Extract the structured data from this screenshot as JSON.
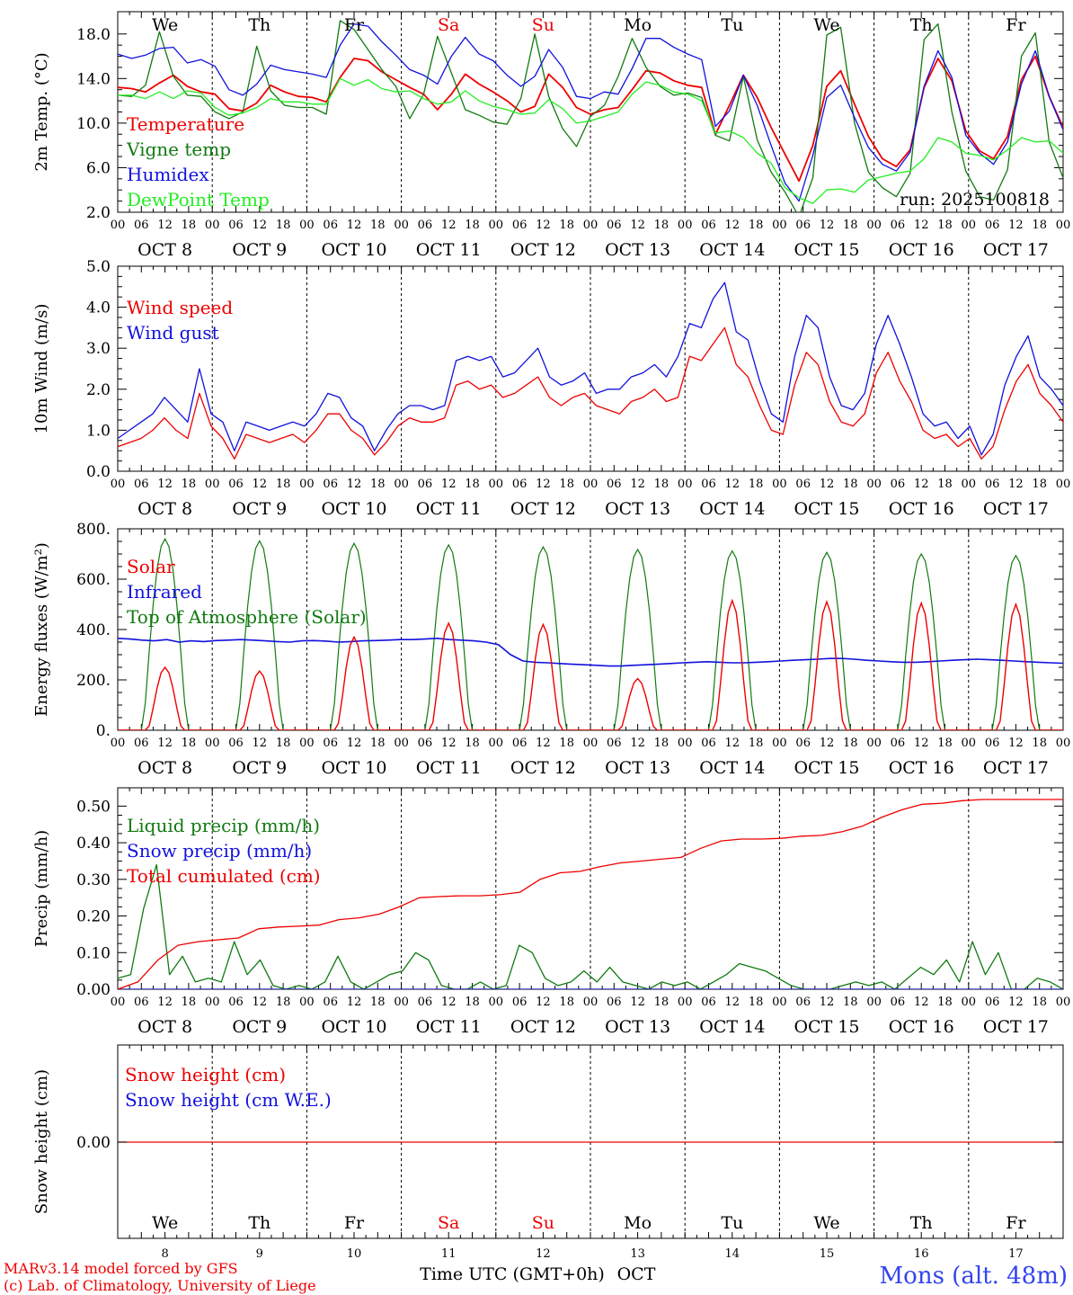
{
  "colors": {
    "red": "#ee0000",
    "green": "#117a11",
    "lightgreen": "#22ee22",
    "blue": "#1111dd",
    "axis": "#000000"
  },
  "days": [
    "We",
    "Th",
    "Fr",
    "Sa",
    "Su",
    "Mo",
    "Tu",
    "We",
    "Th",
    "Fr"
  ],
  "weekend_days": [
    "Sa",
    "Su"
  ],
  "dates": [
    "OCT  8",
    "OCT  9",
    "OCT 10",
    "OCT 11",
    "OCT 12",
    "OCT 13",
    "OCT 14",
    "OCT 15",
    "OCT 16",
    "OCT 17"
  ],
  "hour_ticks": [
    "00",
    "06",
    "12",
    "18"
  ],
  "hour_tick_last": "00",
  "bottom_day_numbers": [
    "8",
    "9",
    "10",
    "11",
    "12",
    "13",
    "14",
    "15",
    "16",
    "17"
  ],
  "footer": {
    "credit_line1": "MARv3.14 model forced by GFS",
    "credit_line2": "(c) Lab. of Climatology, University of Liege",
    "xlabel": "Time UTC (GMT+0h)",
    "month": "OCT",
    "station": "Mons (alt. 48m)"
  },
  "chart_data": [
    {
      "type": "line",
      "id": "temp",
      "ylabel": "2m Temp. (°C)",
      "ylim": [
        2.0,
        20.0
      ],
      "yticks": [
        "2.0",
        "6.0",
        "10.0",
        "14.0",
        "18.0"
      ],
      "ytick_values": [
        2,
        6,
        10,
        14,
        18
      ],
      "run_label": "run: 2025100818",
      "legend": [
        "Temperature",
        "Vigne temp",
        "Humidex",
        "DewPoint Temp"
      ],
      "series": [
        {
          "name": "Temperature",
          "color": "red",
          "values": [
            13.2,
            13.1,
            12.8,
            13.6,
            14.3,
            13.3,
            12.8,
            12.6,
            11.3,
            11.1,
            11.8,
            13.4,
            12.8,
            12.4,
            12.3,
            11.9,
            14.1,
            15.8,
            15.6,
            14.6,
            13.9,
            13.2,
            12.6,
            11.2,
            12.6,
            14.4,
            13.5,
            12.8,
            12.0,
            11.0,
            11.5,
            14.4,
            13.2,
            11.4,
            10.8,
            11.2,
            11.4,
            13.0,
            14.7,
            14.5,
            13.8,
            13.4,
            13.2,
            9.0,
            11.6,
            14.3,
            12.3,
            9.6,
            7.2,
            4.8,
            8.0,
            13.3,
            14.7,
            11.7,
            8.8,
            6.8,
            6.1,
            7.6,
            13.2,
            15.8,
            13.8,
            9.3,
            7.5,
            6.8,
            8.8,
            13.9,
            16.0,
            12.4,
            9.6
          ]
        },
        {
          "name": "Vigne temp",
          "color": "green",
          "values": [
            12.5,
            12.4,
            13.4,
            18.2,
            14.2,
            12.5,
            12.4,
            11.0,
            10.4,
            11.0,
            16.9,
            12.9,
            11.6,
            11.4,
            11.4,
            10.8,
            19.2,
            18.4,
            16.6,
            14.8,
            13.3,
            10.4,
            12.6,
            17.8,
            14.5,
            11.2,
            10.7,
            10.1,
            9.9,
            12.2,
            18.0,
            12.4,
            9.5,
            7.9,
            10.6,
            11.6,
            14.2,
            17.6,
            15.0,
            13.3,
            12.5,
            12.7,
            12.3,
            8.9,
            8.4,
            14.2,
            8.5,
            5.6,
            3.8,
            1.6,
            5.1,
            17.9,
            18.6,
            10.0,
            5.6,
            4.2,
            3.4,
            5.5,
            17.5,
            18.9,
            11.0,
            5.7,
            3.4,
            3.1,
            5.8,
            16.0,
            18.1,
            8.3,
            5.1
          ]
        },
        {
          "name": "Humidex",
          "color": "blue",
          "values": [
            16.2,
            15.8,
            16.1,
            16.7,
            16.8,
            15.4,
            15.7,
            15.1,
            13.0,
            12.5,
            13.5,
            15.2,
            14.8,
            14.6,
            14.4,
            14.1,
            17.0,
            18.9,
            18.7,
            17.3,
            16.1,
            14.8,
            14.3,
            13.5,
            16.0,
            17.7,
            16.2,
            15.6,
            14.3,
            13.3,
            14.2,
            16.6,
            15.0,
            12.4,
            12.2,
            12.8,
            12.6,
            14.9,
            17.6,
            17.6,
            16.8,
            16.2,
            15.7,
            9.7,
            11.1,
            14.3,
            11.6,
            8.0,
            4.6,
            3.0,
            7.1,
            12.3,
            13.4,
            10.5,
            7.8,
            6.3,
            5.7,
            7.4,
            13.3,
            16.5,
            14.1,
            8.9,
            7.3,
            6.3,
            8.3,
            13.5,
            16.5,
            12.4,
            9.4
          ]
        },
        {
          "name": "DewPoint Temp",
          "color": "lightgreen",
          "values": [
            12.5,
            12.5,
            12.2,
            12.8,
            12.2,
            12.9,
            12.7,
            11.4,
            10.7,
            10.9,
            11.4,
            12.2,
            11.9,
            11.9,
            11.7,
            11.7,
            14.0,
            13.4,
            13.9,
            13.1,
            12.8,
            12.9,
            12.2,
            11.7,
            11.9,
            12.9,
            12.0,
            11.5,
            11.2,
            10.8,
            10.9,
            12.1,
            11.3,
            10.0,
            10.2,
            10.6,
            11.0,
            12.6,
            13.7,
            13.4,
            12.8,
            12.6,
            12.0,
            9.1,
            9.3,
            8.7,
            7.3,
            6.4,
            4.2,
            3.3,
            2.8,
            4.0,
            4.1,
            3.8,
            4.9,
            5.2,
            5.5,
            5.7,
            6.8,
            8.7,
            8.3,
            7.3,
            7.1,
            6.7,
            7.6,
            8.7,
            8.3,
            8.4,
            7.3
          ]
        }
      ]
    },
    {
      "type": "line",
      "id": "wind",
      "ylabel": "10m Wind (m/s)",
      "ylim": [
        0.0,
        5.0
      ],
      "yticks": [
        "0.0",
        "1.0",
        "2.0",
        "3.0",
        "4.0",
        "5.0"
      ],
      "ytick_values": [
        0,
        1,
        2,
        3,
        4,
        5
      ],
      "legend": [
        "Wind speed",
        "Wind gust"
      ],
      "series": [
        {
          "name": "Wind speed",
          "color": "red",
          "values": [
            0.6,
            0.7,
            0.8,
            1.0,
            1.3,
            1.0,
            0.8,
            1.9,
            1.1,
            0.8,
            0.3,
            0.9,
            0.8,
            0.7,
            0.8,
            0.9,
            0.7,
            1.0,
            1.4,
            1.4,
            1.0,
            0.8,
            0.4,
            0.7,
            1.1,
            1.3,
            1.2,
            1.2,
            1.3,
            2.1,
            2.2,
            2.0,
            2.1,
            1.8,
            1.9,
            2.1,
            2.3,
            1.8,
            1.6,
            1.8,
            1.9,
            1.6,
            1.5,
            1.4,
            1.7,
            1.8,
            2.0,
            1.7,
            1.8,
            2.8,
            2.7,
            3.1,
            3.5,
            2.6,
            2.3,
            1.6,
            1.0,
            0.9,
            2.1,
            2.9,
            2.6,
            1.7,
            1.2,
            1.1,
            1.4,
            2.4,
            2.9,
            2.2,
            1.7,
            1.0,
            0.8,
            0.9,
            0.6,
            0.8,
            0.3,
            0.6,
            1.5,
            2.2,
            2.6,
            1.9,
            1.6,
            1.2
          ]
        },
        {
          "name": "Wind gust",
          "color": "blue",
          "values": [
            0.8,
            1.0,
            1.2,
            1.4,
            1.8,
            1.5,
            1.2,
            2.5,
            1.4,
            1.2,
            0.5,
            1.2,
            1.1,
            1.0,
            1.1,
            1.2,
            1.1,
            1.4,
            1.9,
            1.8,
            1.3,
            1.1,
            0.5,
            1.0,
            1.4,
            1.6,
            1.6,
            1.5,
            1.6,
            2.7,
            2.8,
            2.7,
            2.8,
            2.3,
            2.4,
            2.7,
            3.0,
            2.3,
            2.1,
            2.2,
            2.4,
            1.9,
            2.0,
            2.0,
            2.3,
            2.4,
            2.6,
            2.3,
            2.8,
            3.6,
            3.5,
            4.2,
            4.6,
            3.4,
            3.2,
            2.2,
            1.4,
            1.2,
            2.8,
            3.8,
            3.5,
            2.3,
            1.6,
            1.5,
            1.9,
            3.1,
            3.8,
            3.1,
            2.3,
            1.4,
            1.1,
            1.2,
            0.8,
            1.1,
            0.4,
            0.9,
            2.1,
            2.8,
            3.3,
            2.3,
            2.0,
            1.6
          ]
        }
      ]
    },
    {
      "type": "line",
      "id": "energy",
      "ylabel": "Energy fluxes (W/m²)",
      "ylim": [
        0,
        800
      ],
      "yticks": [
        "0.",
        "200.",
        "400.",
        "600.",
        "800."
      ],
      "ytick_values": [
        0,
        200,
        400,
        600,
        800
      ],
      "legend": [
        "Solar",
        "Infrared",
        "Top of Atmosphere (Solar)"
      ],
      "diurnal": {
        "solar_peaks": [
          250,
          235,
          370,
          425,
          420,
          205,
          515,
          510,
          505,
          500
        ],
        "toa_peaks": [
          760,
          752,
          742,
          736,
          728,
          718,
          712,
          706,
          700,
          694
        ],
        "infrared_values": [
          365,
          362,
          358,
          355,
          360,
          350,
          355,
          352,
          356,
          358,
          360,
          358,
          355,
          352,
          350,
          355,
          356,
          354,
          350,
          352,
          355,
          356,
          358,
          360,
          360,
          362,
          365,
          360,
          358,
          355,
          350,
          340,
          300,
          275,
          270,
          268,
          265,
          262,
          260,
          258,
          255,
          255,
          258,
          260,
          262,
          265,
          268,
          270,
          272,
          270,
          268,
          268,
          270,
          272,
          275,
          278,
          280,
          282,
          285,
          285,
          282,
          278,
          275,
          272,
          270,
          270,
          272,
          275,
          278,
          280,
          282,
          280,
          278,
          275,
          272,
          270,
          268,
          266
        ]
      }
    },
    {
      "type": "line",
      "id": "precip",
      "ylabel": "Precip (mm/h)",
      "ylim": [
        0.0,
        0.55
      ],
      "yticks": [
        "0.00",
        "0.10",
        "0.20",
        "0.30",
        "0.40",
        "0.50"
      ],
      "ytick_values": [
        0,
        0.1,
        0.2,
        0.3,
        0.4,
        0.5
      ],
      "legend": [
        "Liquid precip (mm/h)",
        "Snow precip (mm/h)",
        "Total cumulated (cm)"
      ],
      "series": [
        {
          "name": "Liquid precip (mm/h)",
          "color": "green",
          "values": [
            0.03,
            0.04,
            0.22,
            0.34,
            0.04,
            0.09,
            0.02,
            0.03,
            0.02,
            0.13,
            0.04,
            0.08,
            0.01,
            0.0,
            0.01,
            0.0,
            0.02,
            0.09,
            0.02,
            0.0,
            0.02,
            0.04,
            0.05,
            0.1,
            0.08,
            0.01,
            0.0,
            0.0,
            0.02,
            0.0,
            0.01,
            0.12,
            0.1,
            0.03,
            0.01,
            0.02,
            0.05,
            0.02,
            0.06,
            0.02,
            0.01,
            0.0,
            0.02,
            0.01,
            0.02,
            0.0,
            0.02,
            0.04,
            0.07,
            0.06,
            0.05,
            0.03,
            0.01,
            0.0,
            0.0,
            0.0,
            0.01,
            0.02,
            0.01,
            0.02,
            0.0,
            0.03,
            0.06,
            0.04,
            0.08,
            0.02,
            0.13,
            0.04,
            0.1,
            0.0,
            0.0,
            0.03,
            0.02,
            0.0
          ]
        },
        {
          "name": "Snow precip (mm/h)",
          "color": "blue",
          "values": [
            0.0,
            0.0
          ]
        },
        {
          "name": "Total cumulated (cm)",
          "color": "red",
          "values": [
            0.0,
            0.02,
            0.08,
            0.12,
            0.13,
            0.135,
            0.14,
            0.165,
            0.17,
            0.172,
            0.175,
            0.19,
            0.195,
            0.205,
            0.225,
            0.25,
            0.253,
            0.255,
            0.255,
            0.258,
            0.265,
            0.3,
            0.318,
            0.322,
            0.335,
            0.345,
            0.35,
            0.355,
            0.36,
            0.385,
            0.405,
            0.41,
            0.41,
            0.412,
            0.418,
            0.42,
            0.43,
            0.445,
            0.47,
            0.49,
            0.505,
            0.508,
            0.515,
            0.518,
            0.518,
            0.518,
            0.518,
            0.518
          ]
        }
      ]
    },
    {
      "type": "line",
      "id": "snow",
      "ylabel": "Snow height (cm)",
      "yticks": [
        "0.00"
      ],
      "legend": [
        "Snow height (cm)",
        "Snow height (cm W.E.)"
      ],
      "series": [
        {
          "name": "Snow height (cm)",
          "color": "red",
          "values": [
            0.0,
            0.0
          ]
        },
        {
          "name": "Snow height (cm W.E.)",
          "color": "blue",
          "values": [
            0.0,
            0.0
          ]
        }
      ]
    }
  ]
}
